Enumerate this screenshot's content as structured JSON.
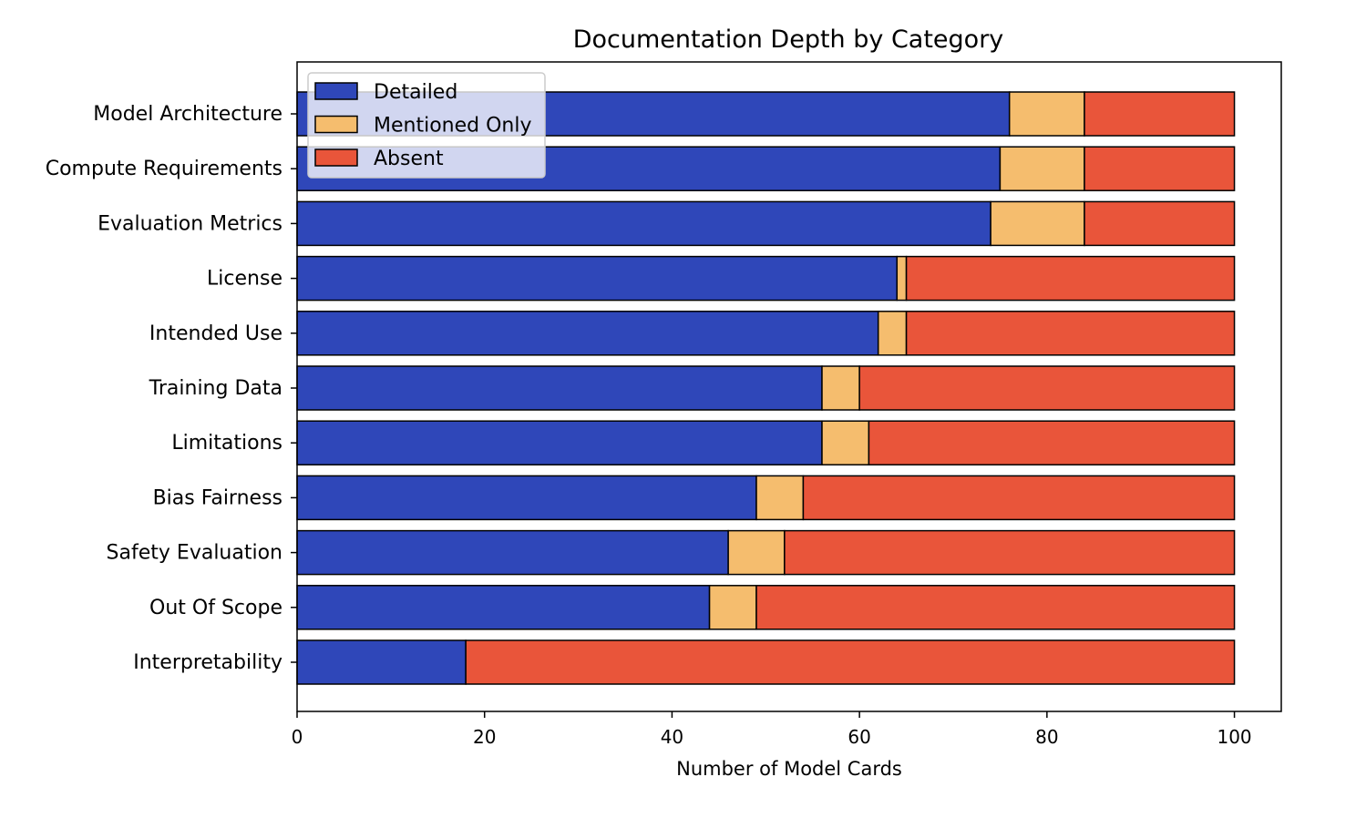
{
  "chart_data": {
    "type": "bar",
    "orientation": "horizontal",
    "stacked": true,
    "title": "Documentation Depth by Category",
    "xlabel": "Number of Model Cards",
    "ylabel": "",
    "xlim": [
      0,
      105
    ],
    "xticks": [
      0,
      20,
      40,
      60,
      80,
      100
    ],
    "grid": false,
    "legend_position": "top-left",
    "categories": [
      "Model Architecture",
      "Compute Requirements",
      "Evaluation Metrics",
      "License",
      "Intended Use",
      "Training Data",
      "Limitations",
      "Bias Fairness",
      "Safety Evaluation",
      "Out Of Scope",
      "Interpretability"
    ],
    "series": [
      {
        "name": "Detailed",
        "color": "#2f47b9",
        "values": [
          76,
          75,
          74,
          64,
          62,
          56,
          56,
          49,
          46,
          44,
          18
        ]
      },
      {
        "name": "Mentioned Only",
        "color": "#f5bd6e",
        "values": [
          8,
          9,
          10,
          1,
          3,
          4,
          5,
          5,
          6,
          5,
          0
        ]
      },
      {
        "name": "Absent",
        "color": "#e9553a",
        "values": [
          16,
          16,
          16,
          35,
          35,
          40,
          39,
          46,
          48,
          51,
          82
        ]
      }
    ]
  }
}
